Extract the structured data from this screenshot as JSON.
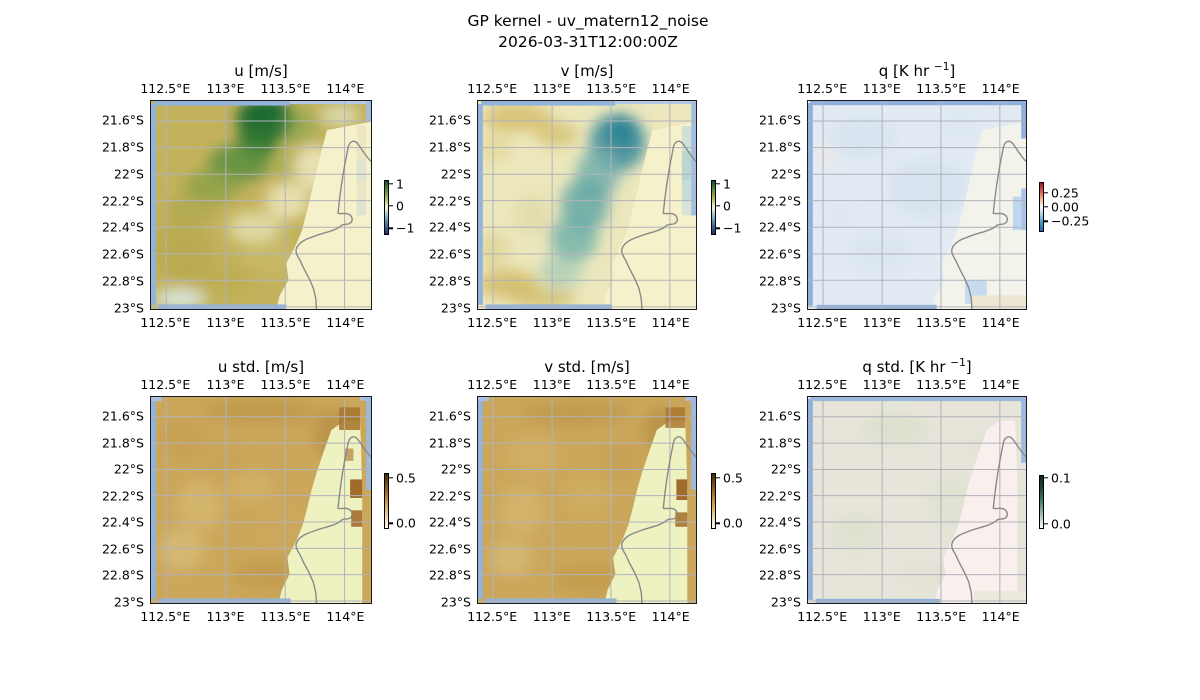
{
  "figure": {
    "title_line1": "GP kernel - uv_matern12_noise",
    "title_line2": "2026-03-31T12:00:00Z"
  },
  "axes": {
    "lon_ticks": [
      "112.5°E",
      "113°E",
      "113.5°E",
      "114°E"
    ],
    "lat_ticks": [
      "21.6°S",
      "21.8°S",
      "22°S",
      "22.2°S",
      "22.4°S",
      "22.6°S",
      "22.8°S",
      "23°S"
    ]
  },
  "panels": [
    {
      "key": "u",
      "title_pre": "u [m/s]",
      "title_sup": "",
      "title_post": "",
      "colorbar_ticks": [
        "1",
        "0",
        "−1"
      ]
    },
    {
      "key": "v",
      "title_pre": "v [m/s]",
      "title_sup": "",
      "title_post": "",
      "colorbar_ticks": [
        "1",
        "0",
        "−1"
      ]
    },
    {
      "key": "q",
      "title_pre": "q [K hr ",
      "title_sup": "−1",
      "title_post": "]",
      "colorbar_ticks": [
        "0.25",
        "0.00",
        "−0.25"
      ]
    },
    {
      "key": "u_std",
      "title_pre": "u std. [m/s]",
      "title_sup": "",
      "title_post": "",
      "colorbar_ticks": [
        "0.5",
        "0.0"
      ]
    },
    {
      "key": "v_std",
      "title_pre": "v std. [m/s]",
      "title_sup": "",
      "title_post": "",
      "colorbar_ticks": [
        "0.5",
        "0.0"
      ]
    },
    {
      "key": "q_std",
      "title_pre": "q std. [K hr ",
      "title_sup": "−1",
      "title_post": "]",
      "colorbar_ticks": [
        "0.1",
        "0.0"
      ]
    }
  ],
  "colors": {
    "figure_bg": "#ffffff",
    "coastline": "#8a8a8a",
    "gridlines": "#b2b2bb",
    "domain_edge_blue": "#92b3dc",
    "land_cream_row1": "#f5f1ca",
    "land_white_q": "#f3f3ec",
    "land_green_std": "#eef2c0",
    "land_pink_qstd": "#f9f0ed",
    "u_positive_green": "#1d6a31",
    "u_base_olive": "#c3b25c",
    "v_negative_teal": "#2c8495",
    "v_base_pale": "#ece7bc",
    "q_pale_blue": "#e2ebf4",
    "std_tan": "#cba75b",
    "std_dark_brown": "#9f6c2b",
    "qstd_base": "#e7e5da"
  },
  "chart_data": [
    {
      "type": "heatmap",
      "panel": "u",
      "title": "u [m/s]",
      "units": "m/s",
      "x_ticks": [
        "112.5°E",
        "113°E",
        "113.5°E",
        "114°E"
      ],
      "y_ticks": [
        "21.6°S",
        "21.8°S",
        "22°S",
        "22.2°S",
        "22.4°S",
        "22.6°S",
        "22.8°S",
        "23°S"
      ],
      "lon_range": [
        112.4,
        114.2
      ],
      "lat_range": [
        -23.0,
        -21.45
      ],
      "colorbar_ticks": [
        1,
        0,
        -1
      ],
      "colorbar_range": [
        -1.3,
        1.3
      ],
      "pattern": "Olive/tan positive u over most of ocean; strong positive dark-green blob (~1.2 m/s) near 113.5E 21.6S extending SW as a band; near-zero pale yellow along coast and NE corner; pale mint patch at SW bottom; masked cream land in east; blue domain-edge cells along borders",
      "approx_values": {
        "lon": [
          112.55,
          112.85,
          113.15,
          113.45,
          113.75,
          114.05
        ],
        "lat": [
          -21.6,
          -21.85,
          -22.1,
          -22.35,
          -22.6,
          -22.85
        ],
        "grid": [
          [
            0.35,
            0.5,
            0.9,
            1.2,
            0.3,
            0.1
          ],
          [
            0.4,
            0.55,
            0.85,
            0.95,
            0.2,
            0.05
          ],
          [
            0.45,
            0.6,
            0.65,
            0.35,
            0.1,
            null
          ],
          [
            0.5,
            0.45,
            0.35,
            0.2,
            0.05,
            null
          ],
          [
            0.45,
            0.4,
            0.3,
            0.1,
            null,
            null
          ],
          [
            0.25,
            0.2,
            0.3,
            0.15,
            null,
            null
          ]
        ]
      }
    },
    {
      "type": "heatmap",
      "panel": "v",
      "title": "v [m/s]",
      "units": "m/s",
      "x_ticks": [
        "112.5°E",
        "113°E",
        "113.5°E",
        "114°E"
      ],
      "y_ticks": [
        "21.6°S",
        "21.8°S",
        "22°S",
        "22.2°S",
        "22.4°S",
        "22.6°S",
        "22.8°S",
        "23°S"
      ],
      "lon_range": [
        112.4,
        114.2
      ],
      "lat_range": [
        -23.0,
        -21.45
      ],
      "colorbar_ticks": [
        1,
        0,
        -1
      ],
      "colorbar_range": [
        -1.3,
        1.3
      ],
      "pattern": "Pale yellow background with weak positive tan streaks in NW and SW corners; negative teal diagonal band from NE (~-0.8 m/s near 113.6E 21.8S) curving SW toward 113.2E 22.6S; masked cream land in east",
      "approx_values": {
        "lon": [
          112.55,
          112.85,
          113.15,
          113.45,
          113.75,
          114.05
        ],
        "lat": [
          -21.6,
          -21.85,
          -22.1,
          -22.35,
          -22.6,
          -22.85
        ],
        "grid": [
          [
            0.15,
            -0.05,
            -0.45,
            -0.65,
            -0.35,
            -0.15
          ],
          [
            0.2,
            -0.1,
            -0.5,
            -0.8,
            -0.45,
            -0.1
          ],
          [
            0.1,
            -0.15,
            -0.45,
            -0.55,
            -0.25,
            null
          ],
          [
            0.05,
            -0.25,
            -0.5,
            -0.35,
            -0.1,
            null
          ],
          [
            0.1,
            -0.15,
            -0.4,
            -0.25,
            null,
            null
          ],
          [
            0.3,
            0.15,
            -0.1,
            -0.15,
            null,
            null
          ]
        ]
      }
    },
    {
      "type": "heatmap",
      "panel": "q",
      "title": "q [K hr −1]",
      "units": "K/hr",
      "x_ticks": [
        "112.5°E",
        "113°E",
        "113.5°E",
        "114°E"
      ],
      "y_ticks": [
        "21.6°S",
        "21.8°S",
        "22°S",
        "22.2°S",
        "22.4°S",
        "22.6°S",
        "22.8°S",
        "23°S"
      ],
      "lon_range": [
        112.4,
        114.2
      ],
      "lat_range": [
        -23.0,
        -21.45
      ],
      "colorbar_ticks": [
        0.25,
        0.0,
        -0.25
      ],
      "colorbar_range": [
        -0.35,
        0.35
      ],
      "approx_range": [
        -0.06,
        0.03
      ],
      "pattern": "Near-zero field: faint pale-blue (slightly negative) over ocean, near-white over land; prominent blue masked-edge cells on all borders"
    },
    {
      "type": "heatmap",
      "panel": "u_std",
      "title": "u std. [m/s]",
      "units": "m/s",
      "x_ticks": [
        "112.5°E",
        "113°E",
        "113.5°E",
        "114°E"
      ],
      "y_ticks": [
        "21.6°S",
        "21.8°S",
        "22°S",
        "22.2°S",
        "22.4°S",
        "22.6°S",
        "22.8°S",
        "23°S"
      ],
      "lon_range": [
        112.4,
        114.2
      ],
      "lat_range": [
        -23.0,
        -21.45
      ],
      "colorbar_ticks": [
        0.5,
        0.0
      ],
      "colorbar_range": [
        0.0,
        0.55
      ],
      "approx_range": [
        0.2,
        0.5
      ],
      "pattern": "Fairly uniform tan (~0.25-0.35) over ocean with subtle lighter patches; darker brown high-std pixels (~0.5) hugging the coastline and NE corner; pale yellow-green masked land"
    },
    {
      "type": "heatmap",
      "panel": "v_std",
      "title": "v std. [m/s]",
      "units": "m/s",
      "x_ticks": [
        "112.5°E",
        "113°E",
        "113.5°E",
        "114°E"
      ],
      "y_ticks": [
        "21.6°S",
        "21.8°S",
        "22°S",
        "22.2°S",
        "22.4°S",
        "22.6°S",
        "22.8°S",
        "23°S"
      ],
      "lon_range": [
        112.4,
        114.2
      ],
      "lat_range": [
        -23.0,
        -21.45
      ],
      "colorbar_ticks": [
        0.5,
        0.0
      ],
      "colorbar_range": [
        0.0,
        0.55
      ],
      "approx_range": [
        0.2,
        0.5
      ],
      "pattern": "Same structure as u std.: uniform tan ocean std with darker brown cells along coastal data edge; pale yellow-green masked land"
    },
    {
      "type": "heatmap",
      "panel": "q_std",
      "title": "q std. [K hr −1]",
      "units": "K/hr",
      "x_ticks": [
        "112.5°E",
        "113°E",
        "113.5°E",
        "114°E"
      ],
      "y_ticks": [
        "21.6°S",
        "21.8°S",
        "22°S",
        "22.2°S",
        "22.4°S",
        "22.6°S",
        "22.8°S",
        "23°S"
      ],
      "lon_range": [
        112.4,
        114.2
      ],
      "lat_range": [
        -23.0,
        -21.45
      ],
      "colorbar_ticks": [
        0.1,
        0.0
      ],
      "colorbar_range": [
        0.0,
        0.11
      ],
      "approx_range": [
        0.02,
        0.06
      ],
      "pattern": "Very low, near-uniform pale gray-beige field with faint green mottling over ocean; very pale pink masked land; blue edge cells"
    }
  ]
}
